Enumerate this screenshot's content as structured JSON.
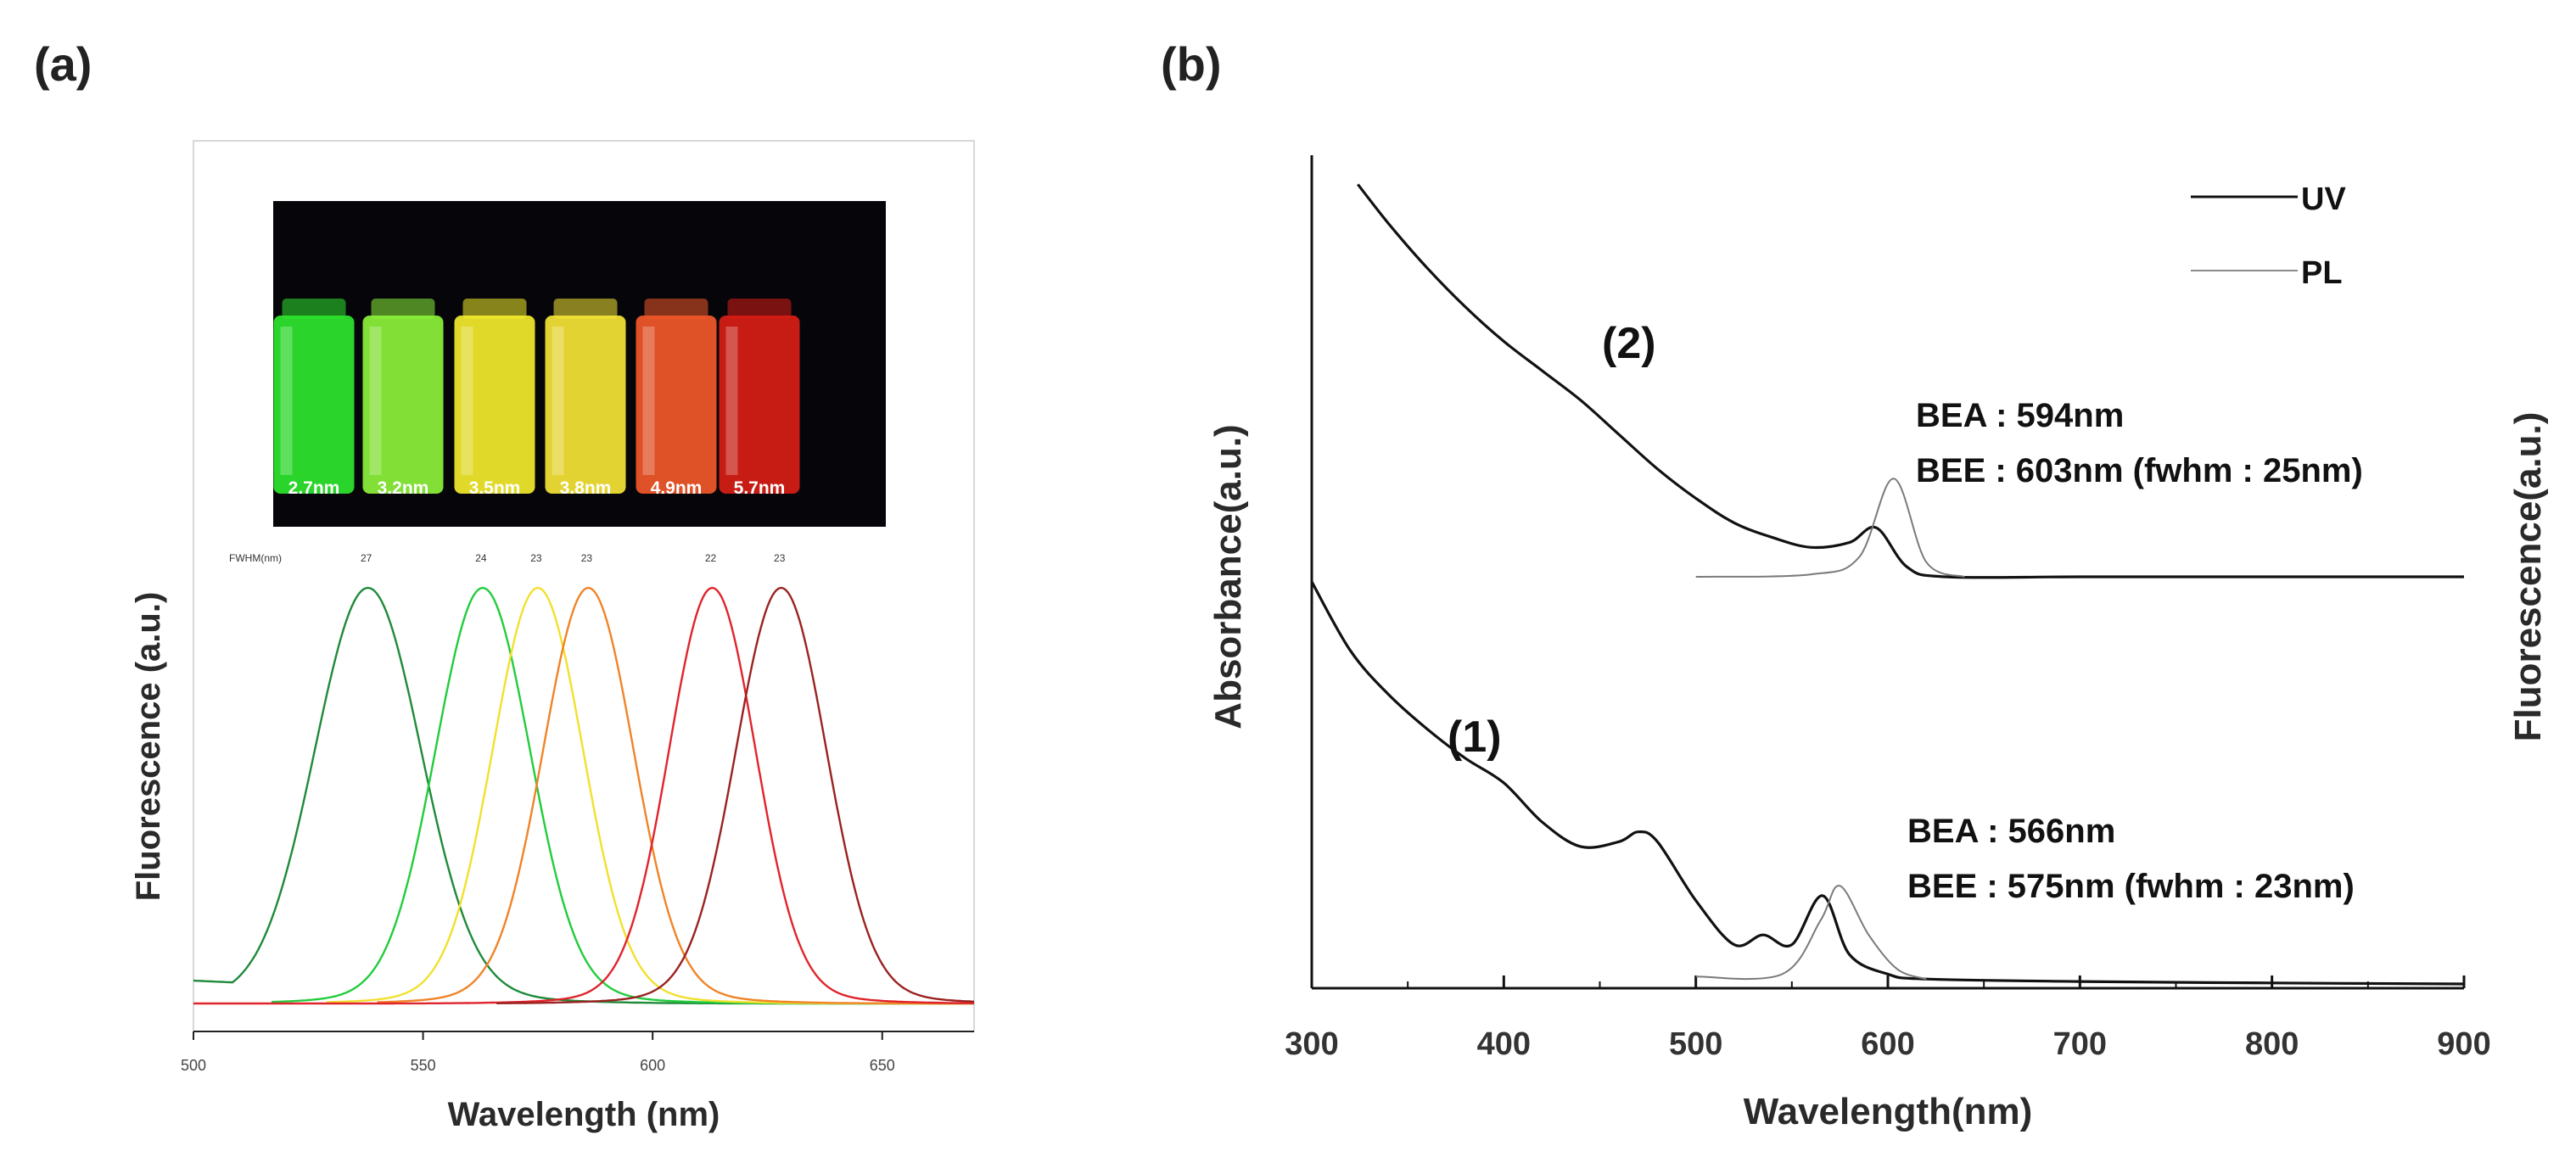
{
  "chart_data": [
    {
      "type": "line",
      "panel_label": "(a)",
      "xlabel": "Wavelength (nm)",
      "ylabel": "Fluorescence (a.u.)",
      "xlim": [
        500,
        670
      ],
      "ylim": [
        0,
        1
      ],
      "x_ticks": [
        "500",
        "550",
        "600",
        "650"
      ],
      "fwhm_header": "FWHM(nm)",
      "inset_vials": [
        {
          "label": "2.7nm",
          "color": "#2ee62e"
        },
        {
          "label": "3.2nm",
          "color": "#8cf23a"
        },
        {
          "label": "3.5nm",
          "color": "#f4ec2c"
        },
        {
          "label": "3.8nm",
          "color": "#f6e536"
        },
        {
          "label": "4.9nm",
          "color": "#f2582a"
        },
        {
          "label": "5.7nm",
          "color": "#d81e16"
        }
      ],
      "series": [
        {
          "name": "2.7nm",
          "peak_nm": 538,
          "fwhm_nm": 27,
          "fwhm_label": "27",
          "color": "#1f8a3a",
          "start_nm": 500
        },
        {
          "name": "3.2nm",
          "peak_nm": 563,
          "fwhm_nm": 24,
          "fwhm_label": "24",
          "color": "#22cc3c",
          "start_nm": 517
        },
        {
          "name": "3.5nm",
          "peak_nm": 575,
          "fwhm_nm": 23,
          "fwhm_label": "23",
          "color": "#f2e02e",
          "start_nm": 529
        },
        {
          "name": "3.8nm",
          "peak_nm": 586,
          "fwhm_nm": 23,
          "fwhm_label": "23",
          "color": "#f08428",
          "start_nm": 540
        },
        {
          "name": "4.9nm",
          "peak_nm": 613,
          "fwhm_nm": 22,
          "fwhm_label": "22",
          "color": "#e0242c",
          "start_nm": 500
        },
        {
          "name": "5.7nm",
          "peak_nm": 628,
          "fwhm_nm": 23,
          "fwhm_label": "23",
          "color": "#9a2222",
          "start_nm": 566
        }
      ]
    },
    {
      "type": "line",
      "panel_label": "(b)",
      "xlabel": "Wavelength(nm)",
      "ylabel_left": "Absorbance(a.u.)",
      "ylabel_right": "Fluorescence(a.u.)",
      "xlim": [
        300,
        900
      ],
      "x_ticks": [
        "300",
        "400",
        "500",
        "600",
        "700",
        "800",
        "900"
      ],
      "legend": [
        {
          "name": "UV",
          "color": "#111111"
        },
        {
          "name": "PL",
          "color": "#7a7a7a"
        }
      ],
      "samples": [
        {
          "label": "(2)",
          "bea_text": "BEA : 594nm",
          "bee_text": "BEE : 603nm (fwhm : 25nm)",
          "abs_peak_nm": 594,
          "pl_peak_nm": 603,
          "pl_fwhm_nm": 25
        },
        {
          "label": "(1)",
          "bea_text": "BEA : 566nm",
          "bee_text": "BEE : 575nm (fwhm : 23nm)",
          "abs_peak_nm": 566,
          "pl_peak_nm": 575,
          "pl_fwhm_nm": 23
        }
      ],
      "uv_curve_2": [
        [
          324,
          1.08
        ],
        [
          340,
          1.0
        ],
        [
          360,
          0.91
        ],
        [
          380,
          0.83
        ],
        [
          400,
          0.76
        ],
        [
          420,
          0.7
        ],
        [
          440,
          0.64
        ],
        [
          460,
          0.57
        ],
        [
          480,
          0.5
        ],
        [
          500,
          0.44
        ],
        [
          520,
          0.39
        ],
        [
          540,
          0.36
        ],
        [
          560,
          0.34
        ],
        [
          580,
          0.35
        ],
        [
          594,
          0.38
        ],
        [
          610,
          0.3
        ],
        [
          630,
          0.28
        ],
        [
          700,
          0.28
        ],
        [
          800,
          0.28
        ],
        [
          900,
          0.28
        ]
      ],
      "uv_curve_1": [
        [
          300,
          0.27
        ],
        [
          320,
          0.13
        ],
        [
          340,
          0.04
        ],
        [
          360,
          -0.03
        ],
        [
          380,
          -0.09
        ],
        [
          400,
          -0.14
        ],
        [
          420,
          -0.22
        ],
        [
          440,
          -0.27
        ],
        [
          460,
          -0.26
        ],
        [
          470,
          -0.24
        ],
        [
          480,
          -0.26
        ],
        [
          500,
          -0.38
        ],
        [
          520,
          -0.47
        ],
        [
          535,
          -0.45
        ],
        [
          550,
          -0.47
        ],
        [
          566,
          -0.37
        ],
        [
          580,
          -0.49
        ],
        [
          600,
          -0.53
        ],
        [
          620,
          -0.54
        ],
        [
          700,
          -0.545
        ],
        [
          800,
          -0.548
        ],
        [
          900,
          -0.55
        ]
      ],
      "pl_curve_2": [
        [
          500,
          0.28
        ],
        [
          560,
          0.285
        ],
        [
          585,
          0.32
        ],
        [
          603,
          0.48
        ],
        [
          620,
          0.31
        ],
        [
          640,
          0.28
        ]
      ],
      "pl_curve_1": [
        [
          500,
          -0.535
        ],
        [
          545,
          -0.53
        ],
        [
          565,
          -0.42
        ],
        [
          575,
          -0.35
        ],
        [
          590,
          -0.45
        ],
        [
          605,
          -0.52
        ],
        [
          620,
          -0.54
        ]
      ]
    }
  ]
}
